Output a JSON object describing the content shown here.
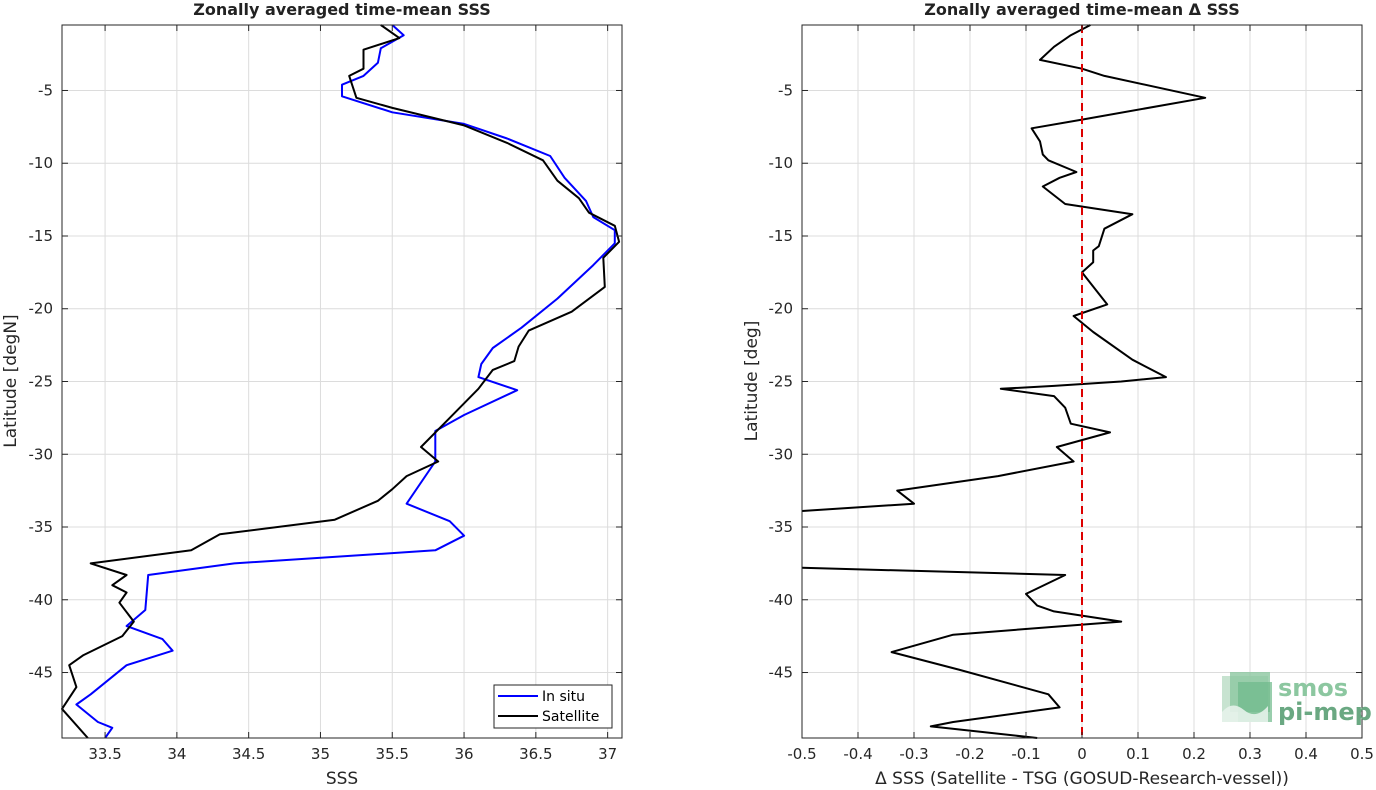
{
  "chart_data": [
    {
      "type": "line",
      "title": "Zonally averaged time-mean SSS",
      "xlabel": "SSS",
      "ylabel": "Latitude [degN]",
      "xlim": [
        33.2,
        37.1
      ],
      "ylim": [
        -49.5,
        -0.5
      ],
      "xticks": [
        33.5,
        34,
        34.5,
        35,
        35.5,
        36,
        36.5,
        37
      ],
      "xtick_labels": [
        "33.5",
        "34",
        "34.5",
        "35",
        "35.5",
        "36",
        "36.5",
        "37"
      ],
      "yticks": [
        -45,
        -40,
        -35,
        -30,
        -25,
        -20,
        -15,
        -10,
        -5
      ],
      "ytick_labels": [
        "-45",
        "-40",
        "-35",
        "-30",
        "-25",
        "-20",
        "-15",
        "-10",
        "-5"
      ],
      "grid": true,
      "legend_position": "bottom-right",
      "series": [
        {
          "name": "In situ",
          "color": "#0000ff",
          "points": [
            [
              35.5,
              -0.5
            ],
            [
              35.58,
              -1.2
            ],
            [
              35.42,
              -2.1
            ],
            [
              35.4,
              -3.1
            ],
            [
              35.3,
              -4.0
            ],
            [
              35.15,
              -4.6
            ],
            [
              35.15,
              -5.4
            ],
            [
              35.5,
              -6.5
            ],
            [
              36.0,
              -7.3
            ],
            [
              36.3,
              -8.3
            ],
            [
              36.6,
              -9.5
            ],
            [
              36.7,
              -11.0
            ],
            [
              36.85,
              -12.6
            ],
            [
              36.9,
              -13.7
            ],
            [
              37.05,
              -14.6
            ],
            [
              37.05,
              -15.5
            ],
            [
              36.9,
              -17.0
            ],
            [
              36.65,
              -19.3
            ],
            [
              36.4,
              -21.3
            ],
            [
              36.2,
              -22.7
            ],
            [
              36.12,
              -23.8
            ],
            [
              36.1,
              -24.7
            ],
            [
              36.37,
              -25.6
            ],
            [
              36.0,
              -27.3
            ],
            [
              35.8,
              -28.4
            ],
            [
              35.8,
              -29.6
            ],
            [
              35.8,
              -30.5
            ],
            [
              35.6,
              -33.4
            ],
            [
              35.9,
              -34.6
            ],
            [
              36.0,
              -35.6
            ],
            [
              35.8,
              -36.6
            ],
            [
              34.4,
              -37.5
            ],
            [
              33.8,
              -38.3
            ],
            [
              33.78,
              -40.7
            ],
            [
              33.65,
              -41.8
            ],
            [
              33.9,
              -42.7
            ],
            [
              33.97,
              -43.5
            ],
            [
              33.65,
              -44.5
            ],
            [
              33.4,
              -46.5
            ],
            [
              33.3,
              -47.2
            ],
            [
              33.45,
              -48.4
            ],
            [
              33.55,
              -48.8
            ],
            [
              33.5,
              -49.5
            ]
          ]
        },
        {
          "name": "Satellite",
          "color": "#000000",
          "points": [
            [
              35.42,
              -0.5
            ],
            [
              35.55,
              -1.4
            ],
            [
              35.3,
              -2.2
            ],
            [
              35.3,
              -3.5
            ],
            [
              35.2,
              -4.0
            ],
            [
              35.25,
              -5.5
            ],
            [
              35.5,
              -6.2
            ],
            [
              36.0,
              -7.4
            ],
            [
              36.3,
              -8.6
            ],
            [
              36.55,
              -9.8
            ],
            [
              36.65,
              -11.2
            ],
            [
              36.8,
              -12.4
            ],
            [
              36.87,
              -13.4
            ],
            [
              37.05,
              -14.3
            ],
            [
              37.08,
              -15.4
            ],
            [
              36.97,
              -16.5
            ],
            [
              36.98,
              -18.5
            ],
            [
              36.75,
              -20.2
            ],
            [
              36.45,
              -21.5
            ],
            [
              36.38,
              -22.6
            ],
            [
              36.35,
              -23.6
            ],
            [
              36.2,
              -24.2
            ],
            [
              36.1,
              -25.5
            ],
            [
              35.9,
              -27.5
            ],
            [
              35.7,
              -29.5
            ],
            [
              35.82,
              -30.5
            ],
            [
              35.6,
              -31.5
            ],
            [
              35.5,
              -32.4
            ],
            [
              35.4,
              -33.2
            ],
            [
              35.1,
              -34.5
            ],
            [
              34.3,
              -35.5
            ],
            [
              34.1,
              -36.6
            ],
            [
              33.4,
              -37.5
            ],
            [
              33.65,
              -38.3
            ],
            [
              33.55,
              -39.0
            ],
            [
              33.65,
              -39.5
            ],
            [
              33.6,
              -40.2
            ],
            [
              33.7,
              -41.5
            ],
            [
              33.62,
              -42.5
            ],
            [
              33.35,
              -43.8
            ],
            [
              33.25,
              -44.5
            ],
            [
              33.3,
              -46.0
            ],
            [
              33.2,
              -47.5
            ],
            [
              33.38,
              -49.5
            ]
          ]
        }
      ]
    },
    {
      "type": "line",
      "title": "Zonally averaged time-mean Δ SSS",
      "xlabel": "Δ SSS (Satellite - TSG (GOSUD-Research-vessel))",
      "ylabel": "Latitude [deg]",
      "xlim": [
        -0.5,
        0.5
      ],
      "ylim": [
        -49.5,
        -0.5
      ],
      "xticks": [
        -0.5,
        -0.4,
        -0.3,
        -0.2,
        -0.1,
        0,
        0.1,
        0.2,
        0.3,
        0.4,
        0.5
      ],
      "xtick_labels": [
        "-0.5",
        "-0.4",
        "-0.3",
        "-0.2",
        "-0.1",
        "0",
        "0.1",
        "0.2",
        "0.3",
        "0.4",
        "0.5"
      ],
      "yticks": [
        -45,
        -40,
        -35,
        -30,
        -25,
        -20,
        -15,
        -10,
        -5
      ],
      "ytick_labels": [
        "-45",
        "-40",
        "-35",
        "-30",
        "-25",
        "-20",
        "-15",
        "-10",
        "-5"
      ],
      "grid": true,
      "reference_line": {
        "x": 0,
        "color": "#dd0000",
        "style": "dashed"
      },
      "series": [
        {
          "color": "#000000",
          "points": [
            [
              0.015,
              -0.5
            ],
            [
              -0.02,
              -1.2
            ],
            [
              -0.05,
              -2.0
            ],
            [
              -0.075,
              -2.9
            ],
            [
              0.0,
              -3.5
            ],
            [
              0.04,
              -4.0
            ],
            [
              0.22,
              -5.5
            ],
            [
              0.0,
              -7.0
            ],
            [
              -0.09,
              -7.6
            ],
            [
              -0.075,
              -8.5
            ],
            [
              -0.07,
              -9.4
            ],
            [
              -0.06,
              -9.8
            ],
            [
              -0.01,
              -10.6
            ],
            [
              -0.04,
              -11.0
            ],
            [
              -0.07,
              -11.6
            ],
            [
              -0.03,
              -12.8
            ],
            [
              0.09,
              -13.5
            ],
            [
              0.04,
              -14.5
            ],
            [
              0.03,
              -15.7
            ],
            [
              0.02,
              -16.0
            ],
            [
              0.02,
              -16.8
            ],
            [
              0.0,
              -17.5
            ],
            [
              0.045,
              -19.7
            ],
            [
              -0.015,
              -20.5
            ],
            [
              0.02,
              -21.6
            ],
            [
              0.09,
              -23.5
            ],
            [
              0.15,
              -24.7
            ],
            [
              0.07,
              -25.0
            ],
            [
              -0.05,
              -25.3
            ],
            [
              -0.145,
              -25.5
            ],
            [
              -0.05,
              -26.0
            ],
            [
              -0.03,
              -26.8
            ],
            [
              -0.02,
              -27.9
            ],
            [
              0.05,
              -28.5
            ],
            [
              -0.045,
              -29.5
            ],
            [
              -0.015,
              -30.5
            ],
            [
              -0.15,
              -31.5
            ],
            [
              -0.33,
              -32.5
            ],
            [
              -0.3,
              -33.4
            ],
            [
              -0.5,
              -33.9
            ]
          ]
        },
        {
          "color": "#000000",
          "points": [
            [
              -0.5,
              -37.8
            ],
            [
              -0.03,
              -38.3
            ],
            [
              -0.1,
              -39.6
            ],
            [
              -0.08,
              -40.4
            ],
            [
              -0.05,
              -40.8
            ],
            [
              0.07,
              -41.5
            ],
            [
              -0.23,
              -42.4
            ],
            [
              -0.34,
              -43.6
            ],
            [
              -0.22,
              -44.8
            ],
            [
              -0.06,
              -46.5
            ],
            [
              -0.04,
              -47.4
            ],
            [
              -0.23,
              -48.4
            ],
            [
              -0.27,
              -48.7
            ],
            [
              -0.08,
              -49.5
            ]
          ]
        }
      ]
    }
  ],
  "legend": {
    "items": [
      {
        "label": "In situ",
        "color": "#0000ff"
      },
      {
        "label": "Satellite",
        "color": "#000000"
      }
    ]
  },
  "logo": {
    "line1": "smos",
    "line2": "pi-mep"
  }
}
